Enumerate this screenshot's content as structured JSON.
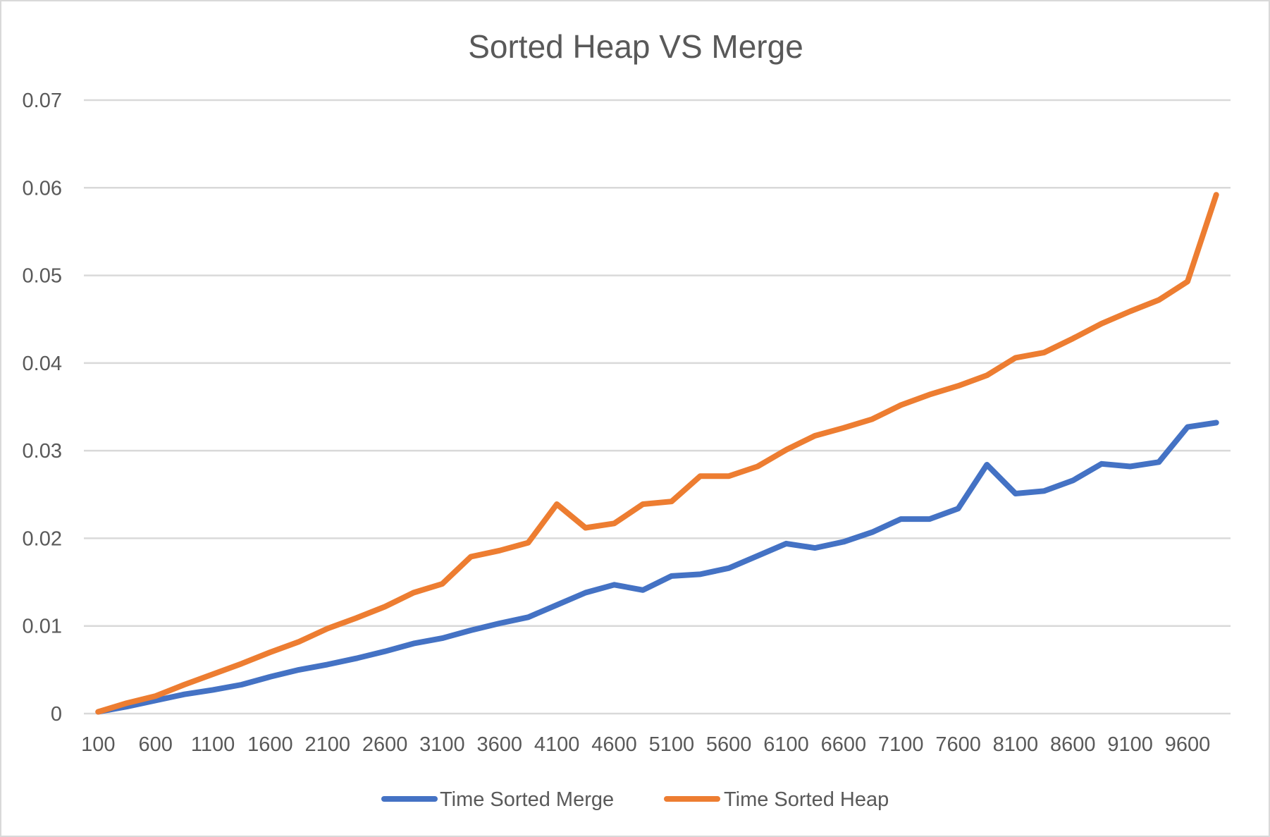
{
  "chart_data": {
    "type": "line",
    "title": "Sorted Heap VS Merge",
    "xlabel": "",
    "ylabel": "",
    "ylim": [
      0,
      0.07
    ],
    "y_ticks": [
      "0",
      "0.01",
      "0.02",
      "0.03",
      "0.04",
      "0.05",
      "0.06",
      "0.07"
    ],
    "categories": [
      100,
      350,
      600,
      850,
      1100,
      1350,
      1600,
      1850,
      2100,
      2350,
      2600,
      2850,
      3100,
      3350,
      3600,
      3850,
      4100,
      4350,
      4600,
      4850,
      5100,
      5350,
      5600,
      5850,
      6100,
      6350,
      6600,
      6850,
      7100,
      7350,
      7600,
      7850,
      8100,
      8350,
      8600,
      8850,
      9100,
      9350,
      9600,
      9850
    ],
    "x_tick_labels": [
      "100",
      "600",
      "1100",
      "1600",
      "2100",
      "2600",
      "3100",
      "3600",
      "4100",
      "4600",
      "5100",
      "5600",
      "6100",
      "6600",
      "7100",
      "7600",
      "8100",
      "8600",
      "9100",
      "9600"
    ],
    "grid": true,
    "legend_position": "bottom",
    "series": [
      {
        "name": "Time Sorted Merge",
        "color": "#4472c4",
        "values": [
          0.0002,
          0.0008,
          0.0015,
          0.0022,
          0.0027,
          0.0033,
          0.0042,
          0.005,
          0.0056,
          0.0063,
          0.0071,
          0.008,
          0.0086,
          0.0095,
          0.0103,
          0.011,
          0.0124,
          0.0138,
          0.0147,
          0.0141,
          0.0157,
          0.0159,
          0.0166,
          0.018,
          0.0194,
          0.0189,
          0.0196,
          0.0207,
          0.0222,
          0.0222,
          0.0234,
          0.0284,
          0.0251,
          0.0254,
          0.0266,
          0.0285,
          0.0282,
          0.0287,
          0.0327,
          0.0332
        ]
      },
      {
        "name": "Time Sorted Heap",
        "color": "#ed7d31",
        "values": [
          0.0002,
          0.0012,
          0.002,
          0.0033,
          0.0045,
          0.0057,
          0.007,
          0.0082,
          0.0097,
          0.0109,
          0.0122,
          0.0138,
          0.0148,
          0.0179,
          0.0186,
          0.0195,
          0.0239,
          0.0212,
          0.0217,
          0.0239,
          0.0242,
          0.0271,
          0.0271,
          0.0282,
          0.0301,
          0.0317,
          0.0326,
          0.0336,
          0.0352,
          0.0364,
          0.0374,
          0.0386,
          0.0406,
          0.0412,
          0.0428,
          0.0445,
          0.0459,
          0.0472,
          0.0493,
          0.0592
        ]
      }
    ]
  }
}
